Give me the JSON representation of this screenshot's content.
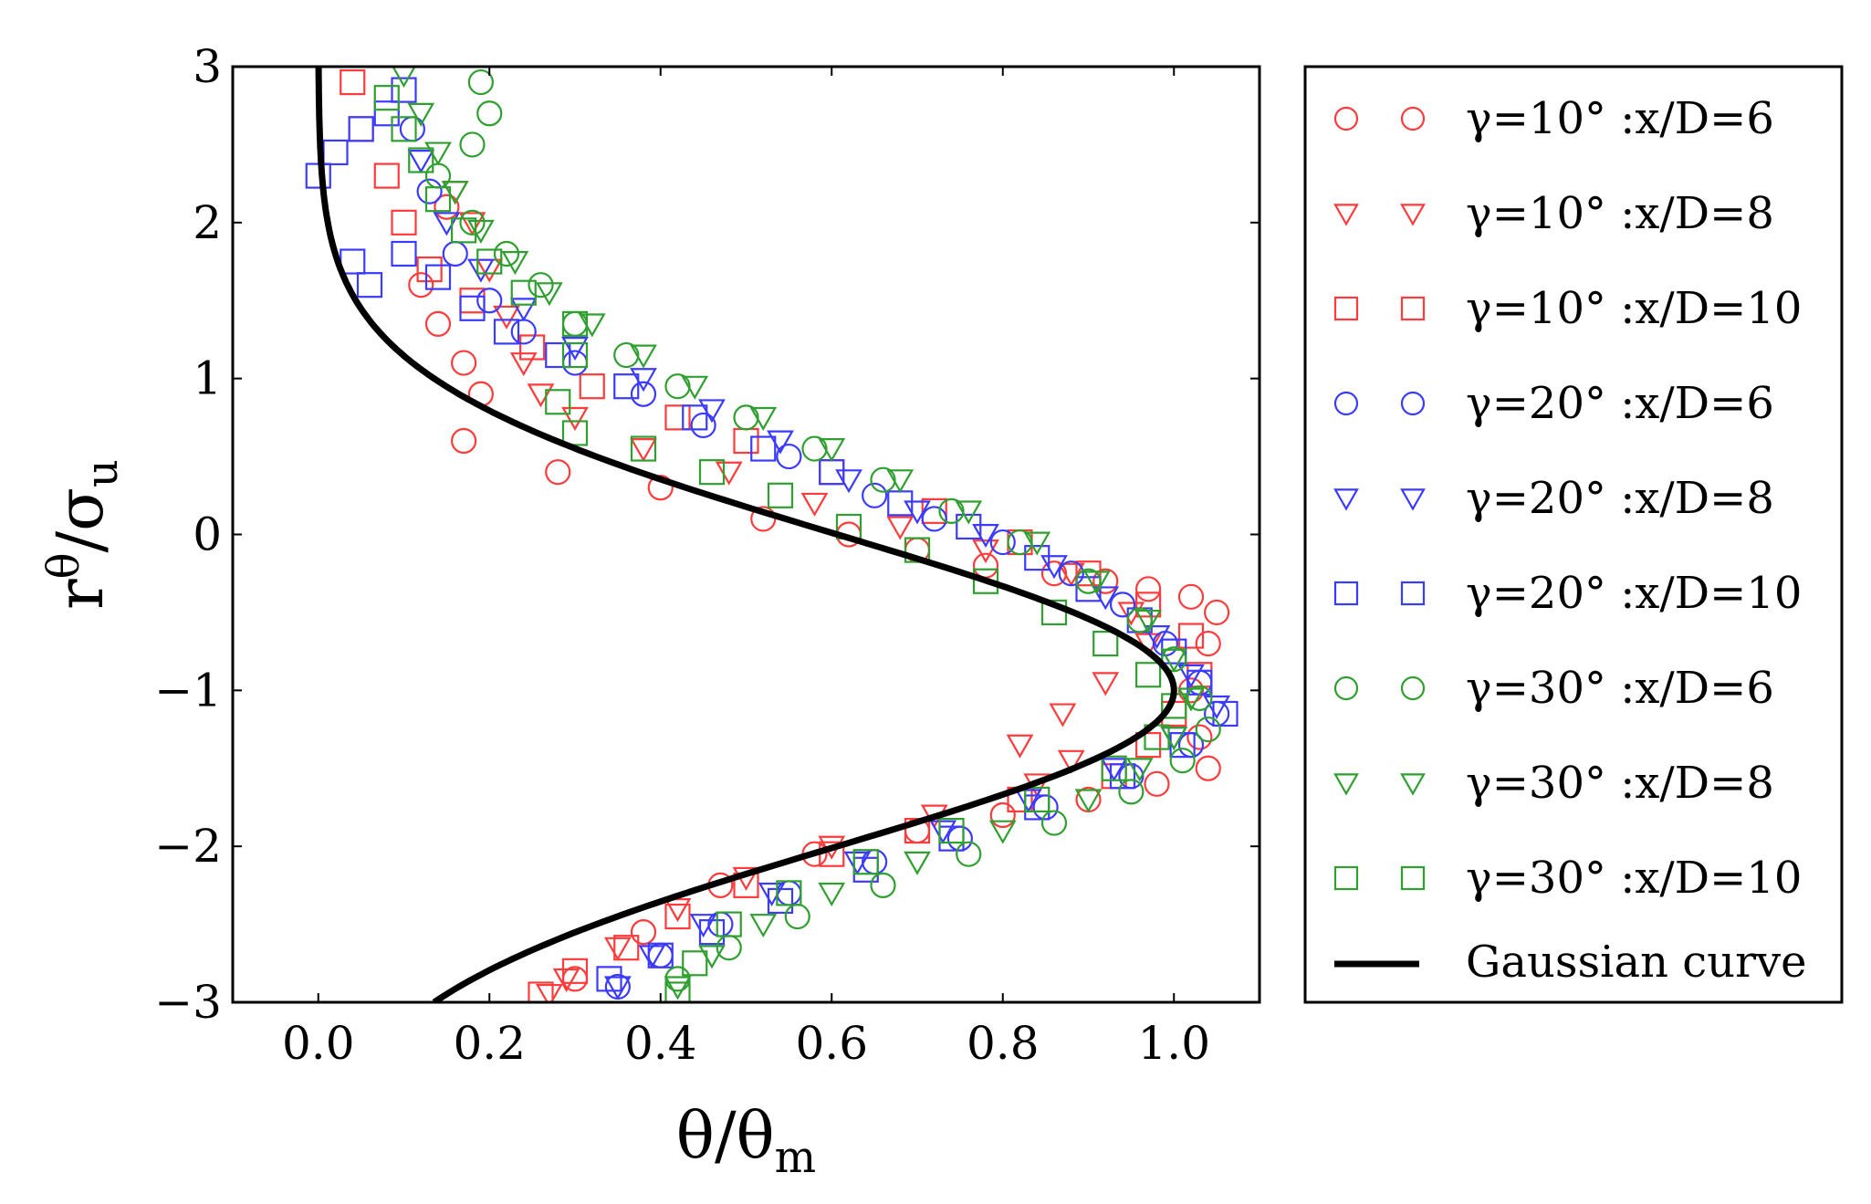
{
  "chart_data": {
    "type": "scatter",
    "title": "",
    "xlabel": "θ/θm",
    "xlabel_parts": {
      "base": "θ/θ",
      "sub": "m"
    },
    "ylabel": "rθ/σu",
    "ylabel_parts": {
      "base": "r",
      "sup": "θ",
      "mid": "/σ",
      "sub": "u"
    },
    "xlim": [
      -0.1,
      1.1
    ],
    "ylim": [
      -3,
      3
    ],
    "xticks": [
      0.0,
      0.2,
      0.4,
      0.6,
      0.8,
      1.0
    ],
    "xtick_labels": [
      "0.0",
      "0.2",
      "0.4",
      "0.6",
      "0.8",
      "1.0"
    ],
    "yticks": [
      3,
      2,
      1,
      0,
      -1,
      -2,
      -3
    ],
    "ytick_labels": [
      "3",
      "2",
      "1",
      "0",
      "−1",
      "−2",
      "−3"
    ],
    "legend_position": "outside-right",
    "series": [
      {
        "name": "γ=10° :x/D=6",
        "color": "#ff3b3b",
        "marker": "circle",
        "points": [
          [
            0.15,
            2.1
          ],
          [
            0.12,
            1.6
          ],
          [
            0.14,
            1.35
          ],
          [
            0.17,
            1.1
          ],
          [
            0.19,
            0.9
          ],
          [
            0.17,
            0.6
          ],
          [
            0.28,
            0.4
          ],
          [
            0.4,
            0.3
          ],
          [
            0.52,
            0.1
          ],
          [
            0.62,
            0.0
          ],
          [
            0.7,
            -0.1
          ],
          [
            0.78,
            -0.2
          ],
          [
            0.86,
            -0.25
          ],
          [
            0.92,
            -0.3
          ],
          [
            0.97,
            -0.35
          ],
          [
            1.02,
            -0.4
          ],
          [
            1.05,
            -0.5
          ],
          [
            1.04,
            -0.7
          ],
          [
            1.02,
            -1.0
          ],
          [
            1.03,
            -1.3
          ],
          [
            1.04,
            -1.5
          ],
          [
            0.98,
            -1.6
          ],
          [
            0.9,
            -1.7
          ],
          [
            0.8,
            -1.8
          ],
          [
            0.7,
            -1.9
          ],
          [
            0.58,
            -2.05
          ],
          [
            0.47,
            -2.25
          ],
          [
            0.38,
            -2.55
          ],
          [
            0.3,
            -2.85
          ]
        ]
      },
      {
        "name": "γ=10° :x/D=8",
        "color": "#ff3b3b",
        "marker": "triangle",
        "points": [
          [
            0.16,
            2.2
          ],
          [
            0.18,
            2.0
          ],
          [
            0.2,
            1.7
          ],
          [
            0.22,
            1.4
          ],
          [
            0.24,
            1.1
          ],
          [
            0.26,
            0.9
          ],
          [
            0.3,
            0.75
          ],
          [
            0.38,
            0.55
          ],
          [
            0.48,
            0.4
          ],
          [
            0.58,
            0.2
          ],
          [
            0.68,
            0.05
          ],
          [
            0.78,
            -0.1
          ],
          [
            0.88,
            -0.25
          ],
          [
            0.95,
            -0.5
          ],
          [
            0.97,
            -0.7
          ],
          [
            0.92,
            -0.95
          ],
          [
            0.87,
            -1.15
          ],
          [
            0.82,
            -1.35
          ],
          [
            0.88,
            -1.45
          ],
          [
            0.84,
            -1.6
          ],
          [
            0.72,
            -1.8
          ],
          [
            0.6,
            -2.0
          ],
          [
            0.5,
            -2.2
          ],
          [
            0.42,
            -2.4
          ],
          [
            0.35,
            -2.65
          ],
          [
            0.29,
            -2.85
          ],
          [
            0.27,
            -2.95
          ]
        ]
      },
      {
        "name": "γ=10° :x/D=10",
        "color": "#ff3b3b",
        "marker": "square",
        "points": [
          [
            0.04,
            2.9
          ],
          [
            0.05,
            2.6
          ],
          [
            0.08,
            2.3
          ],
          [
            0.1,
            2.0
          ],
          [
            0.13,
            1.7
          ],
          [
            0.18,
            1.5
          ],
          [
            0.25,
            1.2
          ],
          [
            0.32,
            0.95
          ],
          [
            0.42,
            0.75
          ],
          [
            0.5,
            0.6
          ],
          [
            0.6,
            0.4
          ],
          [
            0.72,
            0.15
          ],
          [
            0.82,
            -0.05
          ],
          [
            0.9,
            -0.25
          ],
          [
            0.97,
            -0.45
          ],
          [
            1.02,
            -0.65
          ],
          [
            1.03,
            -0.9
          ],
          [
            1.0,
            -1.15
          ],
          [
            0.97,
            -1.35
          ],
          [
            0.93,
            -1.55
          ],
          [
            0.82,
            -1.7
          ],
          [
            0.7,
            -1.9
          ],
          [
            0.6,
            -2.05
          ],
          [
            0.5,
            -2.25
          ],
          [
            0.42,
            -2.45
          ],
          [
            0.36,
            -2.65
          ],
          [
            0.3,
            -2.8
          ],
          [
            0.26,
            -2.95
          ]
        ]
      },
      {
        "name": "γ=20° :x/D=6",
        "color": "#3b3bff",
        "marker": "circle",
        "points": [
          [
            0.11,
            2.6
          ],
          [
            0.13,
            2.2
          ],
          [
            0.16,
            1.8
          ],
          [
            0.2,
            1.5
          ],
          [
            0.24,
            1.3
          ],
          [
            0.3,
            1.1
          ],
          [
            0.38,
            0.9
          ],
          [
            0.45,
            0.7
          ],
          [
            0.55,
            0.5
          ],
          [
            0.65,
            0.25
          ],
          [
            0.72,
            0.1
          ],
          [
            0.8,
            -0.05
          ],
          [
            0.88,
            -0.25
          ],
          [
            0.94,
            -0.45
          ],
          [
            0.99,
            -0.7
          ],
          [
            1.03,
            -0.95
          ],
          [
            1.05,
            -1.15
          ],
          [
            1.02,
            -1.35
          ],
          [
            0.95,
            -1.55
          ],
          [
            0.85,
            -1.75
          ],
          [
            0.75,
            -1.95
          ],
          [
            0.65,
            -2.1
          ],
          [
            0.55,
            -2.3
          ],
          [
            0.47,
            -2.5
          ],
          [
            0.4,
            -2.7
          ],
          [
            0.35,
            -2.9
          ]
        ]
      },
      {
        "name": "γ=20° :x/D=8",
        "color": "#3b3bff",
        "marker": "triangle",
        "points": [
          [
            0.12,
            2.4
          ],
          [
            0.15,
            2.0
          ],
          [
            0.19,
            1.7
          ],
          [
            0.24,
            1.45
          ],
          [
            0.3,
            1.2
          ],
          [
            0.38,
            1.0
          ],
          [
            0.46,
            0.8
          ],
          [
            0.54,
            0.6
          ],
          [
            0.62,
            0.35
          ],
          [
            0.7,
            0.15
          ],
          [
            0.78,
            0.0
          ],
          [
            0.86,
            -0.2
          ],
          [
            0.92,
            -0.4
          ],
          [
            0.98,
            -0.65
          ],
          [
            1.02,
            -0.9
          ],
          [
            1.05,
            -1.1
          ],
          [
            1.0,
            -1.3
          ],
          [
            0.93,
            -1.5
          ],
          [
            0.83,
            -1.7
          ],
          [
            0.73,
            -1.9
          ],
          [
            0.63,
            -2.1
          ],
          [
            0.53,
            -2.3
          ],
          [
            0.45,
            -2.5
          ],
          [
            0.39,
            -2.7
          ],
          [
            0.35,
            -2.9
          ]
        ]
      },
      {
        "name": "γ=20° :x/D=10",
        "color": "#3b3bff",
        "marker": "square",
        "points": [
          [
            0.0,
            2.3
          ],
          [
            0.02,
            2.45
          ],
          [
            0.05,
            2.6
          ],
          [
            0.08,
            2.7
          ],
          [
            0.1,
            2.85
          ],
          [
            0.04,
            1.75
          ],
          [
            0.06,
            1.6
          ],
          [
            0.1,
            1.8
          ],
          [
            0.14,
            1.65
          ],
          [
            0.18,
            1.45
          ],
          [
            0.22,
            1.3
          ],
          [
            0.28,
            1.15
          ],
          [
            0.36,
            0.95
          ],
          [
            0.44,
            0.75
          ],
          [
            0.52,
            0.55
          ],
          [
            0.6,
            0.4
          ],
          [
            0.68,
            0.2
          ],
          [
            0.76,
            0.05
          ],
          [
            0.84,
            -0.15
          ],
          [
            0.9,
            -0.35
          ],
          [
            0.96,
            -0.55
          ],
          [
            1.0,
            -0.75
          ],
          [
            1.03,
            -0.95
          ],
          [
            1.06,
            -1.15
          ],
          [
            1.01,
            -1.35
          ],
          [
            0.94,
            -1.55
          ],
          [
            0.84,
            -1.75
          ],
          [
            0.74,
            -1.95
          ],
          [
            0.64,
            -2.15
          ],
          [
            0.54,
            -2.35
          ],
          [
            0.46,
            -2.55
          ],
          [
            0.4,
            -2.7
          ],
          [
            0.34,
            -2.85
          ]
        ]
      },
      {
        "name": "γ=30° :x/D=6",
        "color": "#2fa02f",
        "marker": "circle",
        "points": [
          [
            0.19,
            2.9
          ],
          [
            0.2,
            2.7
          ],
          [
            0.18,
            2.5
          ],
          [
            0.14,
            2.3
          ],
          [
            0.18,
            2.0
          ],
          [
            0.22,
            1.8
          ],
          [
            0.26,
            1.6
          ],
          [
            0.3,
            1.35
          ],
          [
            0.36,
            1.15
          ],
          [
            0.42,
            0.95
          ],
          [
            0.5,
            0.75
          ],
          [
            0.58,
            0.55
          ],
          [
            0.66,
            0.35
          ],
          [
            0.74,
            0.15
          ],
          [
            0.82,
            -0.05
          ],
          [
            0.9,
            -0.3
          ],
          [
            0.96,
            -0.55
          ],
          [
            1.0,
            -0.8
          ],
          [
            1.03,
            -1.05
          ],
          [
            1.04,
            -1.25
          ],
          [
            1.01,
            -1.45
          ],
          [
            0.95,
            -1.65
          ],
          [
            0.86,
            -1.85
          ],
          [
            0.76,
            -2.05
          ],
          [
            0.66,
            -2.25
          ],
          [
            0.56,
            -2.45
          ],
          [
            0.48,
            -2.65
          ],
          [
            0.42,
            -2.85
          ]
        ]
      },
      {
        "name": "γ=30° :x/D=8",
        "color": "#2fa02f",
        "marker": "triangle",
        "points": [
          [
            0.1,
            2.95
          ],
          [
            0.12,
            2.7
          ],
          [
            0.14,
            2.45
          ],
          [
            0.16,
            2.2
          ],
          [
            0.19,
            1.95
          ],
          [
            0.23,
            1.75
          ],
          [
            0.27,
            1.55
          ],
          [
            0.32,
            1.35
          ],
          [
            0.38,
            1.15
          ],
          [
            0.44,
            0.95
          ],
          [
            0.52,
            0.75
          ],
          [
            0.6,
            0.55
          ],
          [
            0.68,
            0.35
          ],
          [
            0.76,
            0.15
          ],
          [
            0.84,
            -0.05
          ],
          [
            0.91,
            -0.3
          ],
          [
            0.97,
            -0.55
          ],
          [
            1.0,
            -0.8
          ],
          [
            1.02,
            -1.05
          ],
          [
            1.0,
            -1.3
          ],
          [
            0.96,
            -1.5
          ],
          [
            0.9,
            -1.7
          ],
          [
            0.8,
            -1.9
          ],
          [
            0.7,
            -2.1
          ],
          [
            0.6,
            -2.3
          ],
          [
            0.52,
            -2.5
          ],
          [
            0.46,
            -2.7
          ],
          [
            0.42,
            -2.9
          ]
        ]
      },
      {
        "name": "γ=30° :x/D=10",
        "color": "#2fa02f",
        "marker": "square",
        "points": [
          [
            0.08,
            2.8
          ],
          [
            0.1,
            2.6
          ],
          [
            0.12,
            2.4
          ],
          [
            0.14,
            2.15
          ],
          [
            0.17,
            1.95
          ],
          [
            0.2,
            1.75
          ],
          [
            0.24,
            1.55
          ],
          [
            0.3,
            1.35
          ],
          [
            0.3,
            1.15
          ],
          [
            0.28,
            0.85
          ],
          [
            0.3,
            0.65
          ],
          [
            0.38,
            0.55
          ],
          [
            0.46,
            0.4
          ],
          [
            0.54,
            0.25
          ],
          [
            0.62,
            0.05
          ],
          [
            0.7,
            -0.1
          ],
          [
            0.78,
            -0.3
          ],
          [
            0.86,
            -0.5
          ],
          [
            0.92,
            -0.7
          ],
          [
            0.97,
            -0.9
          ],
          [
            1.0,
            -1.1
          ],
          [
            0.98,
            -1.3
          ],
          [
            0.93,
            -1.5
          ],
          [
            0.84,
            -1.7
          ],
          [
            0.74,
            -1.9
          ],
          [
            0.64,
            -2.1
          ],
          [
            0.55,
            -2.3
          ],
          [
            0.48,
            -2.5
          ],
          [
            0.44,
            -2.75
          ],
          [
            0.42,
            -2.95
          ]
        ]
      }
    ],
    "curve": {
      "name": "Gaussian curve",
      "color": "#000000",
      "equation": "x = exp(-(y+1)^2 / 2)",
      "mu": -1,
      "sigma": 1
    }
  }
}
